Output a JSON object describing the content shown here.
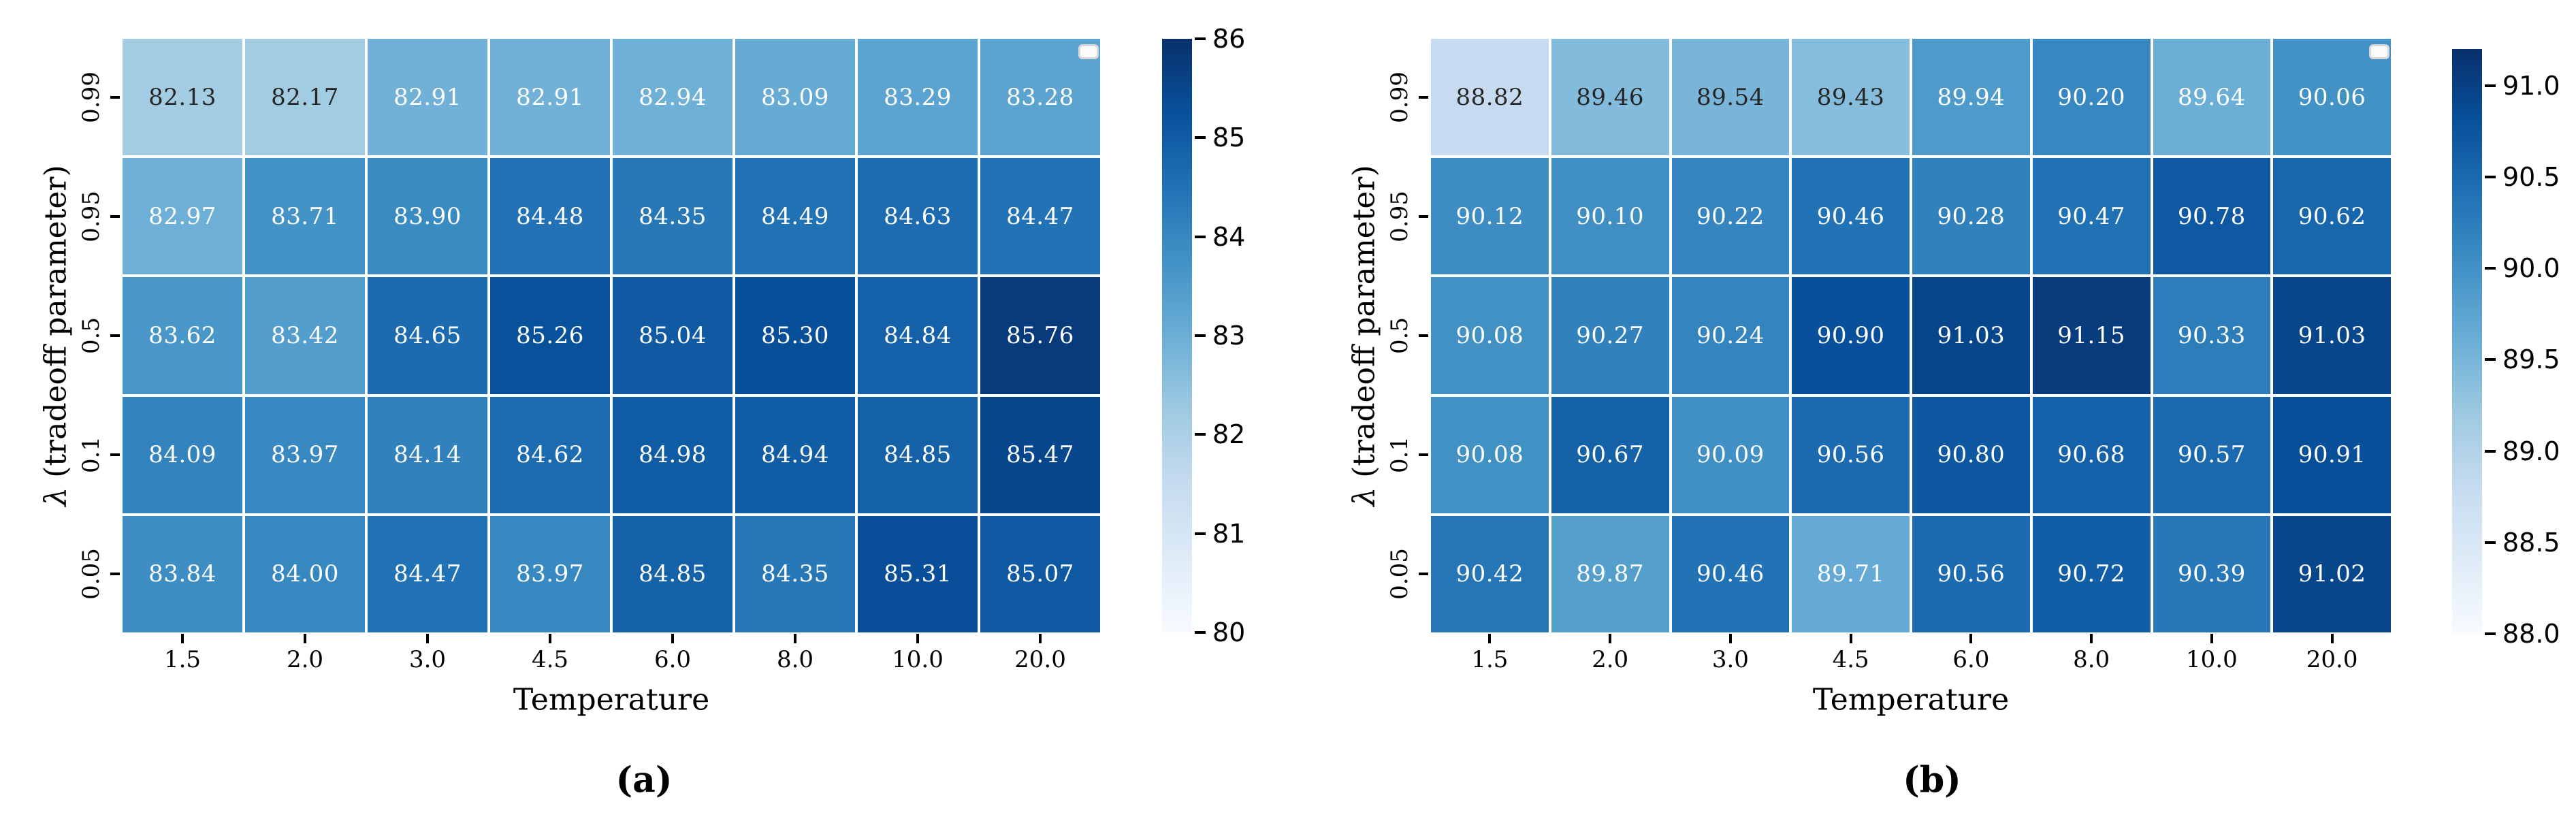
{
  "chart_data": [
    {
      "type": "heatmap",
      "id": "a",
      "caption": "(a)",
      "xlabel": "Temperature",
      "ylabel": "λ (tradeoff parameter)",
      "ylabel_symbol": "λ",
      "ylabel_rest": " (tradeoff parameter)",
      "x_ticklabels": [
        "1.5",
        "2.0",
        "3.0",
        "4.5",
        "6.0",
        "8.0",
        "10.0",
        "20.0"
      ],
      "y_ticklabels": [
        "0.99",
        "0.95",
        "0.5",
        "0.1",
        "0.05"
      ],
      "values": [
        [
          82.13,
          82.17,
          82.91,
          82.91,
          82.94,
          83.09,
          83.29,
          83.28
        ],
        [
          82.97,
          83.71,
          83.9,
          84.48,
          84.35,
          84.49,
          84.63,
          84.47
        ],
        [
          83.62,
          83.42,
          84.65,
          85.26,
          85.04,
          85.3,
          84.84,
          85.76
        ],
        [
          84.09,
          83.97,
          84.14,
          84.62,
          84.98,
          84.94,
          84.85,
          85.47
        ],
        [
          83.84,
          84.0,
          84.47,
          83.97,
          84.85,
          84.35,
          85.31,
          85.07
        ]
      ],
      "colormap": "Blues",
      "grid_lines": "white",
      "color_scale": {
        "vmin": 80,
        "vmax": 86
      },
      "colorbar": {
        "min": 80,
        "max": 86,
        "position": "right",
        "tick_values": [
          86,
          85,
          84,
          83,
          82,
          81,
          80
        ],
        "tick_labels": [
          "86",
          "85",
          "84",
          "83",
          "82",
          "81",
          "80"
        ]
      }
    },
    {
      "type": "heatmap",
      "id": "b",
      "caption": "(b)",
      "xlabel": "Temperature",
      "ylabel": "λ (tradeoff parameter)",
      "ylabel_symbol": "λ",
      "ylabel_rest": " (tradeoff parameter)",
      "x_ticklabels": [
        "1.5",
        "2.0",
        "3.0",
        "4.5",
        "6.0",
        "8.0",
        "10.0",
        "20.0"
      ],
      "y_ticklabels": [
        "0.99",
        "0.95",
        "0.5",
        "0.1",
        "0.05"
      ],
      "values": [
        [
          88.82,
          89.46,
          89.54,
          89.43,
          89.94,
          90.2,
          89.64,
          90.06
        ],
        [
          90.12,
          90.1,
          90.22,
          90.46,
          90.28,
          90.47,
          90.78,
          90.62
        ],
        [
          90.08,
          90.27,
          90.24,
          90.9,
          91.03,
          91.15,
          90.33,
          91.03
        ],
        [
          90.08,
          90.67,
          90.09,
          90.56,
          90.8,
          90.68,
          90.57,
          90.91
        ],
        [
          90.42,
          89.87,
          90.46,
          89.71,
          90.56,
          90.72,
          90.39,
          91.02
        ]
      ],
      "colormap": "Blues",
      "grid_lines": "white",
      "color_scale": {
        "vmin": 88.0,
        "vmax": 91.3
      },
      "colorbar": {
        "min": 88.0,
        "max": 91.2,
        "position": "right",
        "tick_values": [
          91.0,
          90.5,
          90.0,
          89.5,
          89.0,
          88.5,
          88.0
        ],
        "tick_labels": [
          "91.0",
          "90.5",
          "90.0",
          "89.5",
          "89.0",
          "88.5",
          "88.0"
        ]
      }
    }
  ]
}
